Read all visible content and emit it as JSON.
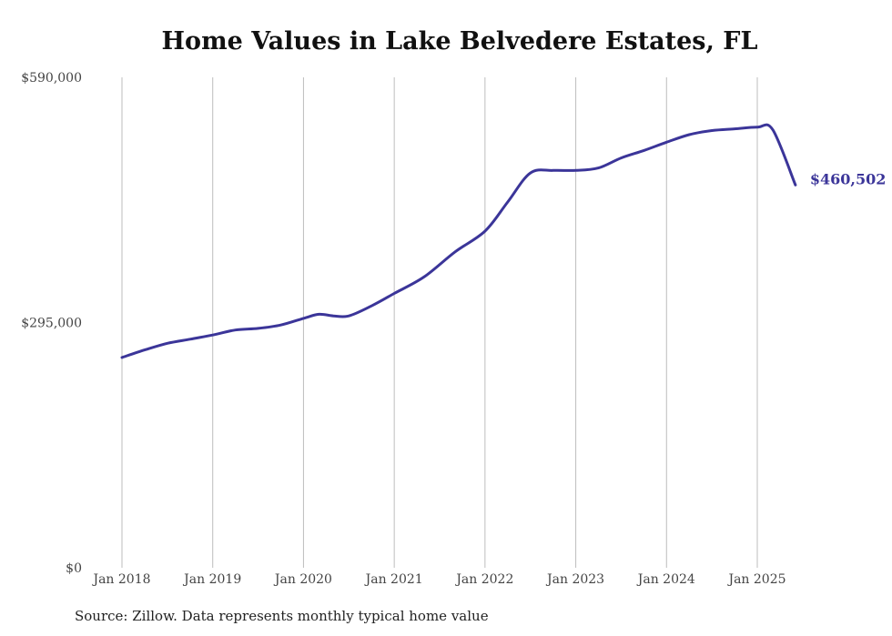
{
  "chart_data": {
    "type": "line",
    "title": "Home Values in Lake Belvedere Estates, FL",
    "xlabel": "",
    "ylabel": "",
    "ylim": [
      0,
      590000
    ],
    "xlim": [
      2018.0,
      2025.42
    ],
    "y_ticks": [
      {
        "value": 0,
        "label": "$0"
      },
      {
        "value": 295000,
        "label": "$295,000"
      },
      {
        "value": 590000,
        "label": "$590,000"
      }
    ],
    "x_ticks": [
      {
        "value": 2018,
        "label": "Jan 2018"
      },
      {
        "value": 2019,
        "label": "Jan 2019"
      },
      {
        "value": 2020,
        "label": "Jan 2020"
      },
      {
        "value": 2021,
        "label": "Jan 2021"
      },
      {
        "value": 2022,
        "label": "Jan 2022"
      },
      {
        "value": 2023,
        "label": "Jan 2023"
      },
      {
        "value": 2024,
        "label": "Jan 2024"
      },
      {
        "value": 2025,
        "label": "Jan 2025"
      }
    ],
    "grid": "vertical",
    "series": [
      {
        "name": "Typical home value",
        "color": "#3b3599",
        "x": [
          2018.0,
          2018.25,
          2018.5,
          2018.75,
          2019.0,
          2019.25,
          2019.5,
          2019.75,
          2020.0,
          2020.17,
          2020.33,
          2020.5,
          2020.75,
          2021.0,
          2021.33,
          2021.67,
          2022.0,
          2022.25,
          2022.5,
          2022.75,
          2023.0,
          2023.25,
          2023.5,
          2023.75,
          2024.0,
          2024.25,
          2024.5,
          2024.75,
          2025.0,
          2025.17,
          2025.42
        ],
        "values": [
          253000,
          262000,
          270000,
          275000,
          280000,
          286000,
          288000,
          292000,
          300000,
          305000,
          303000,
          303000,
          315000,
          330000,
          350000,
          380000,
          405000,
          440000,
          475000,
          478000,
          478000,
          481000,
          493000,
          502000,
          512000,
          521000,
          526000,
          528000,
          530000,
          527000,
          460502
        ]
      }
    ],
    "end_label": "$460,502"
  },
  "source_note": "Source: Zillow. Data represents monthly typical home value"
}
